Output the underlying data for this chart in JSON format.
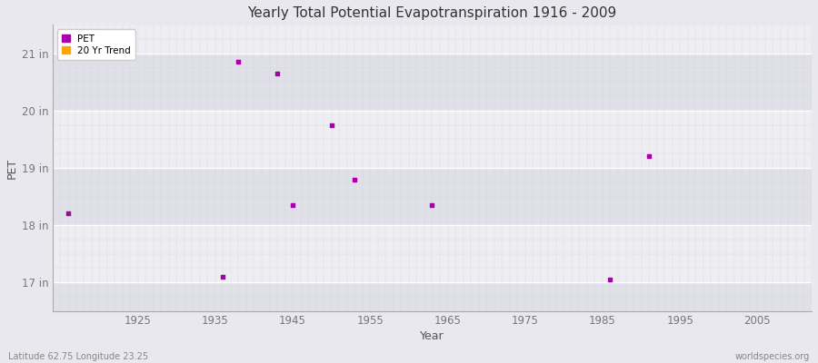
{
  "title": "Yearly Total Potential Evapotranspiration 1916 - 2009",
  "xlabel": "Year",
  "ylabel": "PET",
  "subtitle_left": "Latitude 62.75 Longitude 23.25",
  "subtitle_right": "worldspecies.org",
  "xlim": [
    1914,
    2012
  ],
  "ylim": [
    16.5,
    21.5
  ],
  "yticks": [
    17,
    18,
    19,
    20,
    21
  ],
  "ytick_labels": [
    "17 in",
    "18 in",
    "19 in",
    "20 in",
    "21 in"
  ],
  "xticks": [
    1925,
    1935,
    1945,
    1955,
    1965,
    1975,
    1985,
    1995,
    2005
  ],
  "bg_color": "#e8e8ee",
  "band_light": "#ededf2",
  "band_dark": "#e0e0e8",
  "grid_major_color": "#ffffff",
  "grid_minor_color": "#d8d8e0",
  "dot_color": "#aa00aa",
  "trend_color": "#ffa500",
  "dot_size": 6,
  "pet_data": [
    [
      1916,
      18.2
    ],
    [
      1936,
      17.1
    ],
    [
      1938,
      20.85
    ],
    [
      1943,
      20.65
    ],
    [
      1945,
      18.35
    ],
    [
      1950,
      19.75
    ],
    [
      1953,
      18.8
    ],
    [
      1963,
      18.35
    ],
    [
      1986,
      17.05
    ],
    [
      1991,
      19.2
    ]
  ]
}
